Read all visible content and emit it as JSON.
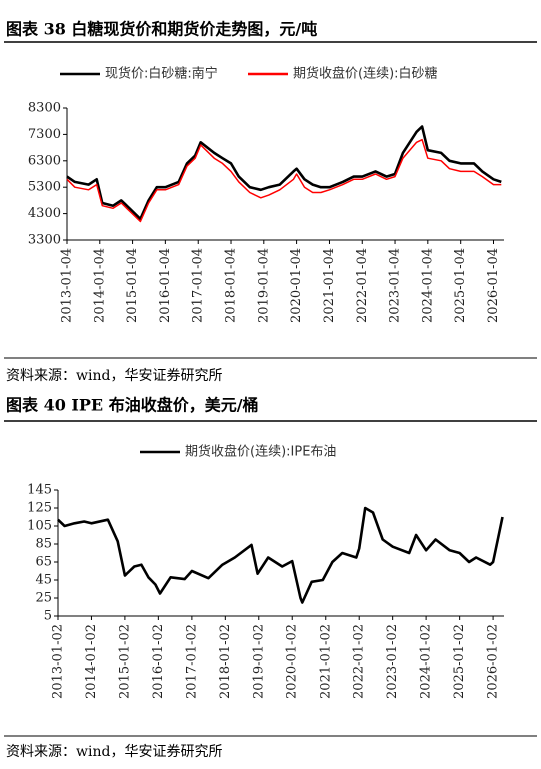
{
  "chart_data": [
    {
      "type": "line",
      "title": "图表 38 白糖现货价和期货价走势图，元/吨",
      "source": "资料来源：wind，华安证券研究所",
      "x": [
        "2013-01-04",
        "2013-04-01",
        "2013-09-01",
        "2013-12-01",
        "2014-02-01",
        "2014-06-01",
        "2014-09-01",
        "2014-12-01",
        "2015-04-01",
        "2015-07-01",
        "2015-10-01",
        "2016-01-04",
        "2016-06-01",
        "2016-09-01",
        "2016-12-01",
        "2017-02-01",
        "2017-07-01",
        "2017-10-01",
        "2018-01-04",
        "2018-04-01",
        "2018-08-01",
        "2018-12-01",
        "2019-03-01",
        "2019-07-01",
        "2019-12-01",
        "2020-01-04",
        "2020-04-01",
        "2020-07-01",
        "2020-10-01",
        "2021-01-04",
        "2021-06-01",
        "2021-10-01",
        "2022-01-04",
        "2022-06-01",
        "2022-10-01",
        "2023-01-04",
        "2023-04-01",
        "2023-09-01",
        "2023-11-01",
        "2024-01-04",
        "2024-06-01",
        "2024-09-01",
        "2025-01-04",
        "2025-06-01",
        "2025-09-01",
        "2026-01-04",
        "2026-04-01"
      ],
      "series": [
        {
          "name": "现货价:白砂糖:南宁",
          "color": "#000000",
          "values": [
            5700,
            5500,
            5400,
            5600,
            4700,
            4600,
            4800,
            4500,
            4100,
            4800,
            5300,
            5300,
            5500,
            6200,
            6500,
            7000,
            6600,
            6400,
            6200,
            5700,
            5300,
            5200,
            5300,
            5400,
            5900,
            6000,
            5600,
            5400,
            5300,
            5300,
            5500,
            5700,
            5700,
            5900,
            5700,
            5800,
            6600,
            7400,
            7600,
            6700,
            6600,
            6300,
            6200,
            6200,
            5900,
            5600,
            5500
          ]
        },
        {
          "name": "期货收盘价(连续):白砂糖",
          "color": "#ff0000",
          "values": [
            5600,
            5300,
            5200,
            5400,
            4600,
            4500,
            4700,
            4400,
            4000,
            4700,
            5200,
            5200,
            5400,
            6100,
            6400,
            6900,
            6400,
            6200,
            5900,
            5500,
            5100,
            4900,
            5000,
            5200,
            5600,
            5800,
            5300,
            5100,
            5100,
            5200,
            5400,
            5600,
            5600,
            5800,
            5600,
            5700,
            6400,
            7000,
            7100,
            6400,
            6300,
            6000,
            5900,
            5900,
            5700,
            5400,
            5400
          ]
        }
      ],
      "xlim": [
        "2013-01-04",
        "2026-05-01"
      ],
      "xticks": [
        "2013-01-04",
        "2014-01-04",
        "2015-01-04",
        "2016-01-04",
        "2017-01-04",
        "2018-01-04",
        "2019-01-04",
        "2020-01-04",
        "2021-01-04",
        "2022-01-04",
        "2023-01-04",
        "2024-01-04",
        "2025-01-04",
        "2026-01-04"
      ],
      "ylim": [
        3300,
        8300
      ],
      "yticks": [
        3300,
        4300,
        5300,
        6300,
        7300,
        8300
      ]
    },
    {
      "type": "line",
      "title": "图表 40 IPE 布油收盘价，美元/桶",
      "source": "资料来源：wind，华安证券研究所",
      "x": [
        "2013-01-02",
        "2013-03-15",
        "2013-07-01",
        "2013-10-15",
        "2014-01-02",
        "2014-07-01",
        "2014-10-15",
        "2015-01-02",
        "2015-04-15",
        "2015-07-01",
        "2015-09-15",
        "2015-12-01",
        "2016-01-20",
        "2016-05-15",
        "2016-10-15",
        "2017-01-02",
        "2017-07-01",
        "2017-12-01",
        "2018-04-15",
        "2018-10-15",
        "2018-12-20",
        "2019-04-15",
        "2019-09-15",
        "2020-01-02",
        "2020-04-01",
        "2020-04-21",
        "2020-08-01",
        "2020-12-01",
        "2021-03-15",
        "2021-07-01",
        "2021-12-01",
        "2022-01-02",
        "2022-03-08",
        "2022-06-01",
        "2022-09-15",
        "2023-01-02",
        "2023-07-01",
        "2023-09-15",
        "2024-01-02",
        "2024-04-15",
        "2024-09-15",
        "2025-01-02",
        "2025-04-15",
        "2025-07-01",
        "2025-12-01",
        "2026-01-02",
        "2026-03-15",
        "2026-04-15"
      ],
      "series": [
        {
          "name": "期货收盘价(连续):IPE布油",
          "color": "#000000",
          "values": [
            112,
            105,
            108,
            110,
            108,
            112,
            88,
            50,
            60,
            62,
            48,
            40,
            30,
            48,
            46,
            55,
            47,
            62,
            70,
            84,
            52,
            70,
            60,
            66,
            25,
            20,
            43,
            45,
            65,
            75,
            70,
            80,
            125,
            120,
            90,
            82,
            75,
            95,
            78,
            90,
            78,
            75,
            65,
            70,
            62,
            65,
            100,
            115
          ]
        }
      ],
      "xlim": [
        "2013-01-02",
        "2026-05-01"
      ],
      "xticks": [
        "2013-01-02",
        "2014-01-02",
        "2015-01-02",
        "2016-01-02",
        "2017-01-02",
        "2018-01-02",
        "2019-01-02",
        "2020-01-02",
        "2021-01-02",
        "2022-01-02",
        "2023-01-02",
        "2024-01-02",
        "2025-01-02",
        "2026-01-02"
      ],
      "ylim": [
        5,
        145
      ],
      "yticks": [
        5,
        25,
        45,
        65,
        85,
        105,
        125,
        145
      ]
    }
  ]
}
